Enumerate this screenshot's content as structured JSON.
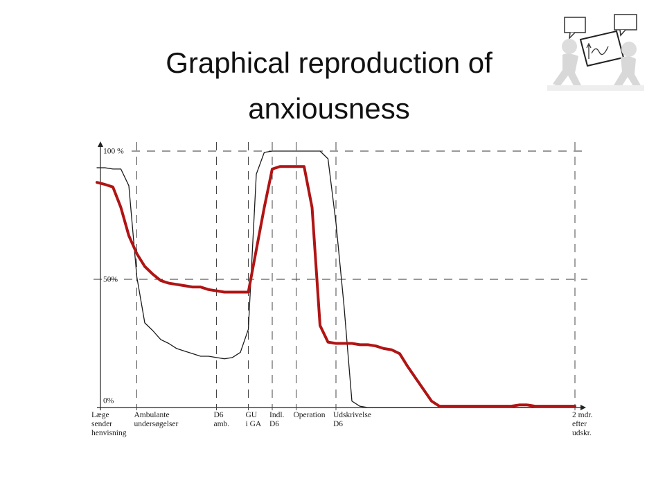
{
  "header": {
    "title": "Graphical reproduction of anxiousness"
  },
  "chart_data": {
    "type": "line",
    "categories": [
      "Læge\nsender\nhenvisning",
      null,
      null,
      null,
      null,
      "Ambulante\nundersøgelser",
      null,
      null,
      null,
      null,
      null,
      null,
      null,
      null,
      null,
      "D6\namb.",
      null,
      null,
      null,
      "GU\ni GA",
      null,
      null,
      "Indl.\nD6",
      null,
      null,
      "Operation",
      null,
      null,
      null,
      null,
      "Udskrivelse\nD6",
      null,
      null,
      null,
      null,
      null,
      null,
      null,
      null,
      null,
      null,
      null,
      null,
      null,
      null,
      null,
      null,
      null,
      null,
      null,
      null,
      null,
      null,
      null,
      null,
      null,
      null,
      null,
      null,
      null,
      "2 mdr.\nefter\nudskr."
    ],
    "series": [
      {
        "color": "#1a1a1a",
        "values": [
          93.5,
          93.5,
          93,
          93,
          86.5,
          51,
          33,
          30,
          26.5,
          25,
          23,
          22,
          21,
          20,
          20,
          19.5,
          19,
          19.5,
          21.5,
          30.5,
          91,
          99.5,
          100,
          100,
          100,
          100,
          100,
          100,
          100,
          97,
          72,
          40,
          2.5,
          0.5,
          0,
          0,
          0,
          0,
          0,
          0,
          0,
          0,
          0,
          0,
          0,
          0,
          0,
          0,
          0,
          0,
          0,
          0,
          0,
          0,
          0,
          0,
          0,
          0,
          0,
          0,
          0
        ]
      },
      {
        "color": "#b01414",
        "values": [
          87.8,
          87,
          86,
          78,
          67,
          60,
          55,
          52,
          49.5,
          48.5,
          48,
          47.5,
          47,
          47,
          46,
          45.5,
          45,
          45,
          45,
          45,
          61.5,
          78,
          93,
          94,
          94,
          94,
          94,
          78,
          32,
          25.5,
          25,
          25,
          25,
          24.5,
          24.5,
          24,
          23,
          22.5,
          21,
          16,
          11.5,
          7,
          2.5,
          0.5,
          0.5,
          0.5,
          0.5,
          0.5,
          0.5,
          0.5,
          0.5,
          0.5,
          0.5,
          1,
          1,
          0.5,
          0.5,
          0.5,
          0.5,
          0.5,
          0.5
        ]
      }
    ],
    "ylim": [
      0,
      100
    ],
    "yticks": [
      {
        "value": 0,
        "label": "0%"
      },
      {
        "value": 50,
        "label": "50%"
      },
      {
        "value": 100,
        "label": "100 %"
      }
    ],
    "grid": true
  }
}
